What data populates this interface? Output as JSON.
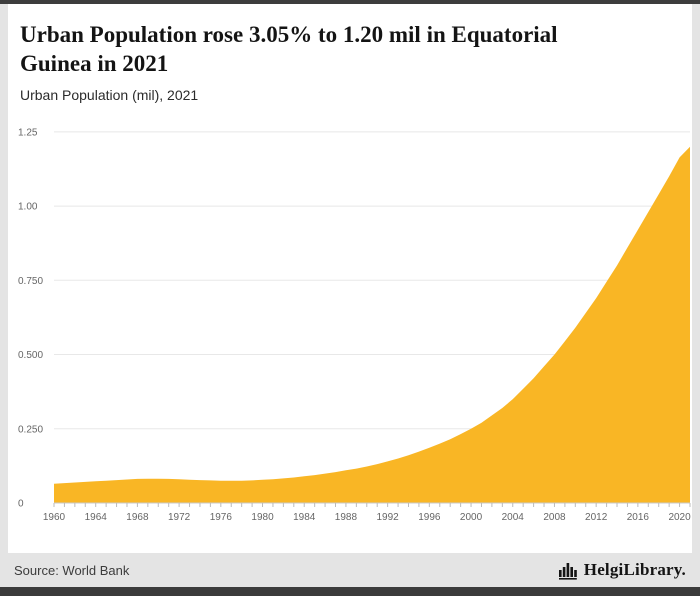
{
  "header": {
    "subtitle": "Urban Population (mil), 2021"
  },
  "footer": {
    "source": "Source: World Bank",
    "logo_text": "HelgiLibrary."
  },
  "chart_data": {
    "type": "area",
    "title": "Urban Population rose 3.05% to 1.20 mil in Equatorial Guinea in 2021",
    "title_lines": [
      "Urban Population rose 3.05% to 1.20 mil in Equatorial",
      "Guinea in 2021"
    ],
    "subtitle": "Urban Population (mil), 2021",
    "source": "World Bank",
    "years": [
      1960,
      1961,
      1962,
      1963,
      1964,
      1965,
      1966,
      1967,
      1968,
      1969,
      1970,
      1971,
      1972,
      1973,
      1974,
      1975,
      1976,
      1977,
      1978,
      1979,
      1980,
      1981,
      1982,
      1983,
      1984,
      1985,
      1986,
      1987,
      1988,
      1989,
      1990,
      1991,
      1992,
      1993,
      1994,
      1995,
      1996,
      1997,
      1998,
      1999,
      2000,
      2001,
      2002,
      2003,
      2004,
      2005,
      2006,
      2007,
      2008,
      2009,
      2010,
      2011,
      2012,
      2013,
      2014,
      2015,
      2016,
      2017,
      2018,
      2019,
      2020,
      2021
    ],
    "values": [
      0.065,
      0.067,
      0.069,
      0.071,
      0.073,
      0.075,
      0.077,
      0.079,
      0.081,
      0.082,
      0.082,
      0.081,
      0.08,
      0.078,
      0.077,
      0.076,
      0.075,
      0.075,
      0.075,
      0.076,
      0.078,
      0.08,
      0.083,
      0.086,
      0.09,
      0.094,
      0.099,
      0.104,
      0.11,
      0.116,
      0.123,
      0.131,
      0.14,
      0.15,
      0.161,
      0.173,
      0.186,
      0.2,
      0.215,
      0.232,
      0.25,
      0.27,
      0.295,
      0.32,
      0.35,
      0.385,
      0.42,
      0.46,
      0.5,
      0.545,
      0.59,
      0.64,
      0.69,
      0.745,
      0.8,
      0.86,
      0.92,
      0.98,
      1.04,
      1.1,
      1.164,
      1.2
    ],
    "ylim": [
      0,
      1.3
    ],
    "yticks": [
      {
        "value": 0,
        "label": "0"
      },
      {
        "value": 0.25,
        "label": "0.250"
      },
      {
        "value": 0.5,
        "label": "0.500"
      },
      {
        "value": 0.75,
        "label": "0.750"
      },
      {
        "value": 1.0,
        "label": "1.00"
      },
      {
        "value": 1.25,
        "label": "1.25"
      }
    ],
    "xticks": [
      1960,
      1964,
      1968,
      1972,
      1976,
      1980,
      1984,
      1988,
      1992,
      1996,
      2000,
      2004,
      2008,
      2012,
      2016,
      2020
    ],
    "legend": "none",
    "grid": true,
    "area_color": "#f9b625",
    "grid_color": "#e8e8e8",
    "axis_color": "#c9c9c9",
    "minor_tick_color": "#bbbbbb",
    "tick_label_color": "#666666"
  }
}
